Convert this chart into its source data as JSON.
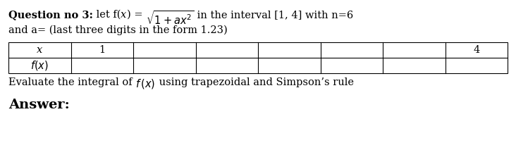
{
  "bg_color": "#ffffff",
  "text_color": "#000000",
  "table_border_color": "#000000",
  "line1_bold": "Question no 3:",
  "line1_normal": " let f(",
  "line1_x": "x",
  "line1_after_x": ") = ",
  "line1_sqrt": "$\\sqrt{1 + ax^2}$",
  "line1_end": " in the interval [1, 4] with n=6",
  "line2": "and a= (last three digits in the form 1.23)",
  "table_row1": [
    "x",
    "1",
    "",
    "",
    "",
    "",
    "",
    "4"
  ],
  "table_row2": [
    "f(x)",
    "",
    "",
    "",
    "",
    "",
    "",
    ""
  ],
  "eval_line": "Evaluate the integral of ",
  "eval_fx": "f (x)",
  "eval_end": " using trapezoidal and Simpson’s rule",
  "answer": "Answer:",
  "fontsize": 10.5,
  "answer_fontsize": 14
}
